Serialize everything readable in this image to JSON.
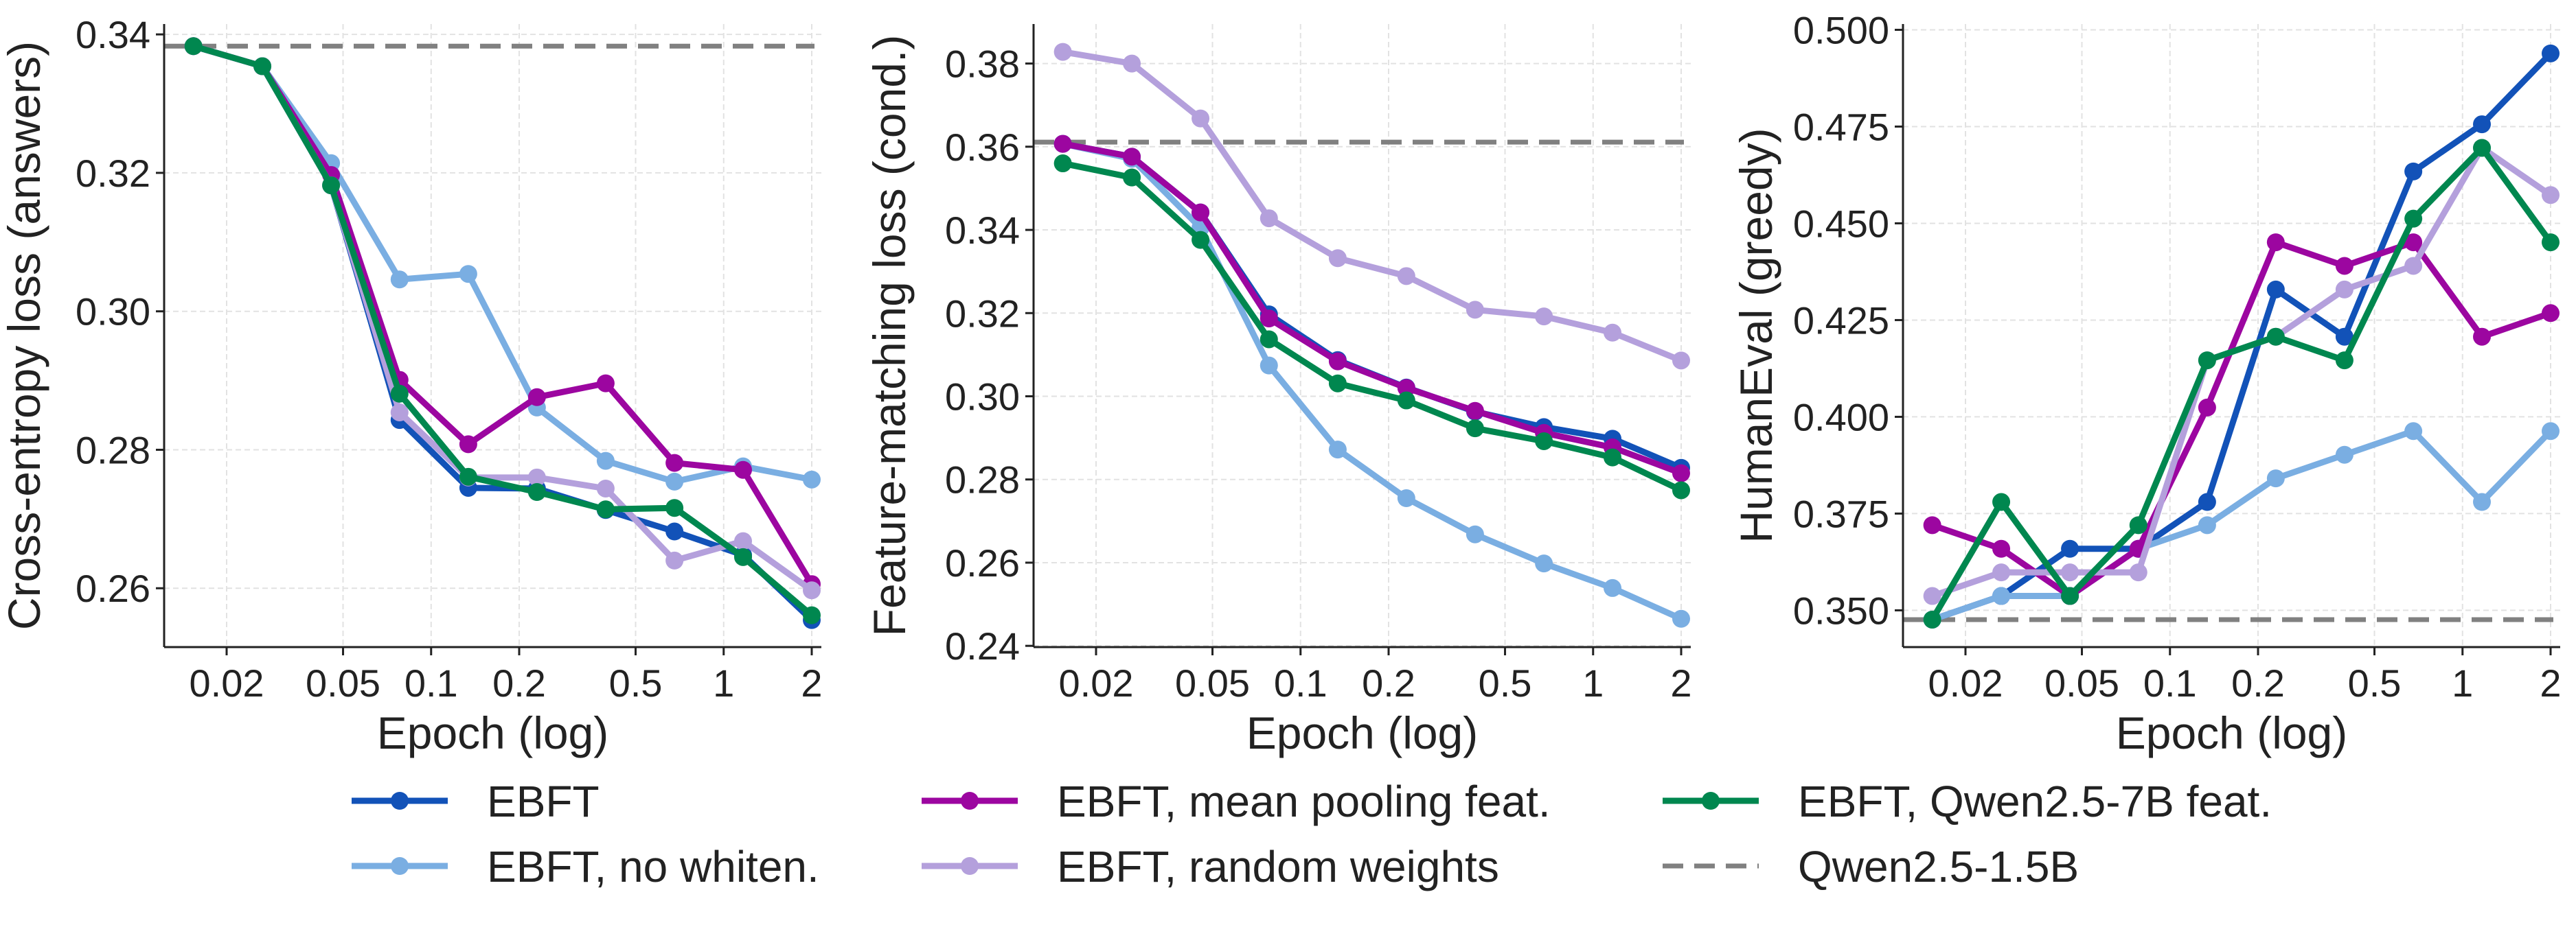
{
  "chart_data": [
    {
      "type": "line",
      "xlabel": "Epoch (log)",
      "ylabel": "Cross-entropy loss (answers)",
      "xscale": "log",
      "xticks": [
        0.02,
        0.05,
        0.1,
        0.2,
        0.5,
        1,
        2
      ],
      "xtick_labels": [
        "0.02",
        "0.05",
        "0.1",
        "0.2",
        "0.5",
        "1",
        "2"
      ],
      "yticks": [
        0.26,
        0.28,
        0.3,
        0.32,
        0.34
      ],
      "ytick_labels": [
        "0.26",
        "0.28",
        "0.30",
        "0.32",
        "0.34"
      ],
      "ylim": [
        0.2515,
        0.3415
      ],
      "grid": true,
      "x": [
        0.0154,
        0.0265,
        0.0455,
        0.078,
        0.134,
        0.23,
        0.395,
        0.679,
        1.165,
        2
      ],
      "series": [
        {
          "name": "EBFT",
          "values": [
            0.3383,
            0.3354,
            0.3182,
            0.2843,
            0.2745,
            0.2744,
            0.2713,
            0.2682,
            0.2648,
            0.2554
          ]
        },
        {
          "name": "EBFT, no whiten.",
          "values": [
            0.3383,
            0.3354,
            0.3214,
            0.3046,
            0.3054,
            0.2861,
            0.2784,
            0.2754,
            0.2776,
            0.2757
          ]
        },
        {
          "name": "EBFT, mean pooling feat.",
          "values": [
            0.3383,
            0.3354,
            0.3197,
            0.2901,
            0.2808,
            0.2876,
            0.2896,
            0.2781,
            0.2771,
            0.2606
          ]
        },
        {
          "name": "EBFT, random weights",
          "values": [
            0.3383,
            0.3354,
            0.3182,
            0.2854,
            0.276,
            0.276,
            0.2744,
            0.264,
            0.2668,
            0.2597
          ]
        },
        {
          "name": "EBFT, Qwen2.5-7B feat.",
          "values": [
            0.3383,
            0.3354,
            0.3182,
            0.2881,
            0.2761,
            0.2739,
            0.2714,
            0.2716,
            0.2645,
            0.2561
          ]
        }
      ],
      "baseline": {
        "name": "Qwen2.5-1.5B",
        "value": 0.3383
      }
    },
    {
      "type": "line",
      "xlabel": "Epoch (log)",
      "ylabel": "Feature-matching loss (cond.)",
      "xscale": "log",
      "xticks": [
        0.02,
        0.05,
        0.1,
        0.2,
        0.5,
        1,
        2
      ],
      "xtick_labels": [
        "0.02",
        "0.05",
        "0.1",
        "0.2",
        "0.5",
        "1",
        "2"
      ],
      "yticks": [
        0.24,
        0.26,
        0.28,
        0.3,
        0.32,
        0.34,
        0.36,
        0.38
      ],
      "ytick_labels": [
        "0.24",
        "0.26",
        "0.28",
        "0.30",
        "0.32",
        "0.34",
        "0.36",
        "0.38"
      ],
      "ylim": [
        0.2397,
        0.3895
      ],
      "grid": true,
      "x": [
        0.0154,
        0.0265,
        0.0455,
        0.078,
        0.134,
        0.23,
        0.395,
        0.679,
        1.165,
        2
      ],
      "series": [
        {
          "name": "EBFT",
          "values": [
            0.3607,
            0.3576,
            0.3442,
            0.3197,
            0.3087,
            0.3021,
            0.2963,
            0.2926,
            0.2898,
            0.2828
          ]
        },
        {
          "name": "EBFT, no whiten.",
          "values": [
            0.3607,
            0.3571,
            0.3405,
            0.3074,
            0.2872,
            0.2755,
            0.2668,
            0.2598,
            0.2539,
            0.2465
          ]
        },
        {
          "name": "EBFT, mean pooling feat.",
          "values": [
            0.3607,
            0.3576,
            0.3442,
            0.3187,
            0.3084,
            0.302,
            0.2965,
            0.2912,
            0.2877,
            0.2815
          ]
        },
        {
          "name": "EBFT, random weights",
          "values": [
            0.3828,
            0.38,
            0.3668,
            0.3428,
            0.3332,
            0.3289,
            0.3208,
            0.3192,
            0.3153,
            0.3086
          ]
        },
        {
          "name": "EBFT, Qwen2.5-7B feat.",
          "values": [
            0.356,
            0.3526,
            0.3376,
            0.3137,
            0.3031,
            0.299,
            0.2923,
            0.2892,
            0.2853,
            0.2774
          ]
        }
      ],
      "baseline": {
        "name": "Qwen2.5-1.5B",
        "value": 0.3611
      }
    },
    {
      "type": "line",
      "xlabel": "Epoch (log)",
      "ylabel": "HumanEval (greedy)",
      "xscale": "log",
      "xticks": [
        0.02,
        0.05,
        0.1,
        0.2,
        0.5,
        1,
        2
      ],
      "xtick_labels": [
        "0.02",
        "0.05",
        "0.1",
        "0.2",
        "0.5",
        "1",
        "2"
      ],
      "yticks": [
        0.35,
        0.375,
        0.4,
        0.425,
        0.45,
        0.475,
        0.5
      ],
      "ytick_labels": [
        "0.350",
        "0.375",
        "0.400",
        "0.425",
        "0.450",
        "0.475",
        "0.500"
      ],
      "ylim": [
        0.3405,
        0.5015
      ],
      "grid": true,
      "x": [
        0.0154,
        0.0265,
        0.0455,
        0.078,
        0.134,
        0.23,
        0.395,
        0.679,
        1.165,
        2
      ],
      "series": [
        {
          "name": "EBFT",
          "values": [
            0.3476,
            0.3537,
            0.3659,
            0.3659,
            0.378,
            0.4329,
            0.4207,
            0.4634,
            0.4756,
            0.4939
          ]
        },
        {
          "name": "EBFT, no whiten.",
          "values": [
            0.3476,
            0.3537,
            0.3537,
            0.3659,
            0.372,
            0.3841,
            0.3902,
            0.3963,
            0.378,
            0.3963
          ]
        },
        {
          "name": "EBFT, mean pooling feat.",
          "values": [
            0.372,
            0.3659,
            0.3537,
            0.3659,
            0.4024,
            0.4451,
            0.439,
            0.4451,
            0.4207,
            0.4268
          ]
        },
        {
          "name": "EBFT, random weights",
          "values": [
            0.3537,
            0.3598,
            0.3598,
            0.3598,
            0.4146,
            0.4207,
            0.4329,
            0.439,
            0.4695,
            0.4573
          ]
        },
        {
          "name": "EBFT, Qwen2.5-7B feat.",
          "values": [
            0.3476,
            0.378,
            0.3537,
            0.372,
            0.4146,
            0.4207,
            0.4146,
            0.4512,
            0.4695,
            0.4451
          ]
        }
      ],
      "baseline": {
        "name": "Qwen2.5-1.5B",
        "value": 0.3476
      }
    }
  ],
  "legend": {
    "placement": "bottom",
    "entries": [
      {
        "label": "EBFT",
        "color": "#1252b8",
        "style": "line-marker"
      },
      {
        "label": "EBFT, no whiten.",
        "color": "#7aaee2",
        "style": "line-marker"
      },
      {
        "label": "EBFT, mean pooling feat.",
        "color": "#9c06a0",
        "style": "line-marker"
      },
      {
        "label": "EBFT, random weights",
        "color": "#b4a0dc",
        "style": "line-marker"
      },
      {
        "label": "EBFT, Qwen2.5-7B feat.",
        "color": "#00874f",
        "style": "line-marker"
      },
      {
        "label": "Qwen2.5-1.5B",
        "color": "#808080",
        "style": "dashed"
      }
    ]
  },
  "colors": {
    "series": [
      "#1252b8",
      "#7aaee2",
      "#9c06a0",
      "#b4a0dc",
      "#00874f"
    ],
    "baseline": "#808080",
    "grid": "#e2e2e2",
    "axis": "#222222"
  }
}
